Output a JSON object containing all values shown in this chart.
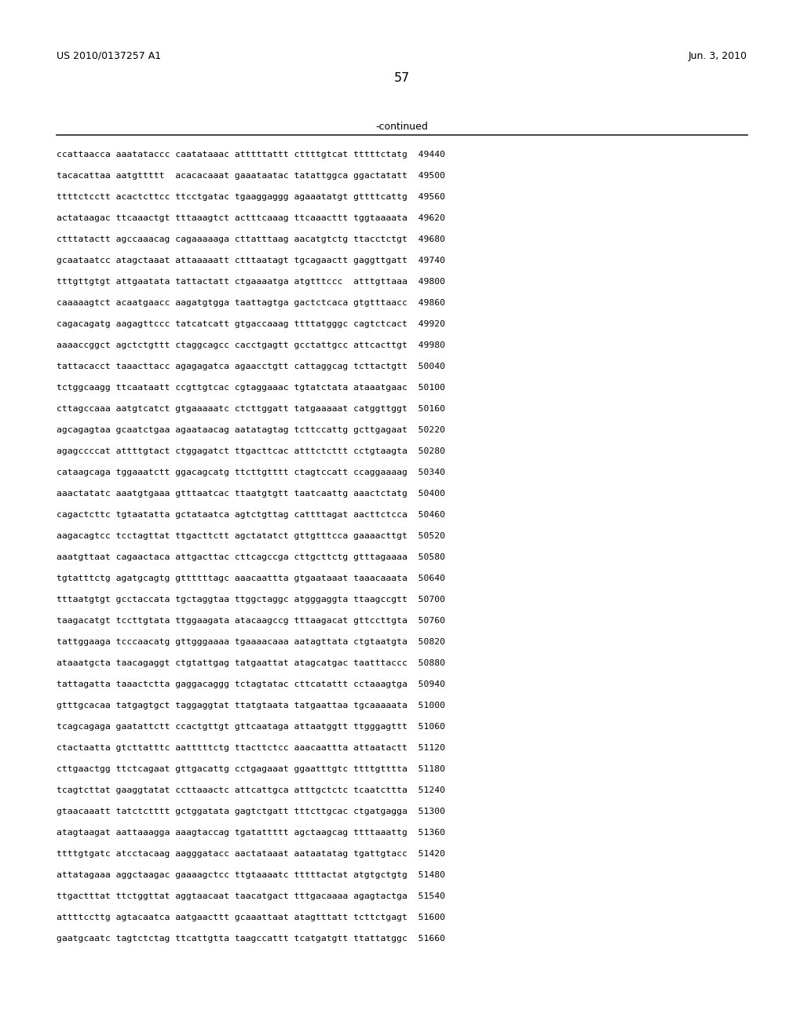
{
  "header_left": "US 2010/0137257 A1",
  "header_right": "Jun. 3, 2010",
  "page_number": "57",
  "continued_label": "-continued",
  "background_color": "#ffffff",
  "text_color": "#000000",
  "font_size_header": 9.0,
  "font_size_page": 11.5,
  "font_size_body": 8.2,
  "font_size_continued": 9.0,
  "sequence_lines": [
    "ccattaacca aaatataccc caatataaac atttttattt cttttgtcat tttttctatg  49440",
    "tacacattaa aatgttttt  acacacaaat gaaataatac tatattggca ggactatatt  49500",
    "ttttctcctt acactcttcc ttcctgatac tgaaggaggg agaaatatgt gttttcattg  49560",
    "actataagac ttcaaactgt tttaaagtct actttcaaag ttcaaacttt tggtaaaata  49620",
    "ctttatactt agccaaacag cagaaaaaga cttatttaag aacatgtctg ttacctctgt  49680",
    "gcaataatcc atagctaaat attaaaaatt ctttaatagt tgcagaactt gaggttgatt  49740",
    "tttgttgtgt attgaatata tattactatt ctgaaaatga atgtttccc  atttgttaaa  49800",
    "caaaaagtct acaatgaacc aagatgtgga taattagtga gactctcaca gtgtttaacc  49860",
    "cagacagatg aagagttccc tatcatcatt gtgaccaaag ttttatgggc cagtctcact  49920",
    "aaaaccggct agctctgttt ctaggcagcc cacctgagtt gcctattgcc attcacttgt  49980",
    "tattacacct taaacttacc agagagatca agaacctgtt cattaggcag tcttactgtt  50040",
    "tctggcaagg ttcaataatt ccgttgtcac cgtaggaaac tgtatctata ataaatgaac  50100",
    "cttagccaaa aatgtcatct gtgaaaaatc ctcttggatt tatgaaaaat catggttggt  50160",
    "agcagagtaa gcaatctgaa agaataacag aatatagtag tcttccattg gcttgagaat  50220",
    "agagccccat attttgtact ctggagatct ttgacttcac atttctcttt cctgtaagta  50280",
    "cataagcaga tggaaatctt ggacagcatg ttcttgtttt ctagtccatt ccaggaaaag  50340",
    "aaactatatc aaatgtgaaa gtttaatcac ttaatgtgtt taatcaattg aaactctatg  50400",
    "cagactcttc tgtaatatta gctataatca agtctgttag cattttagat aacttctcca  50460",
    "aagacagtcc tcctagttat ttgacttctt agctatatct gttgtttcca gaaaacttgt  50520",
    "aaatgttaat cagaactaca attgacttac cttcagccga cttgcttctg gtttagaaaa  50580",
    "tgtatttctg agatgcagtg gttttttagc aaacaattta gtgaataaat taaacaaata  50640",
    "tttaatgtgt gcctaccata tgctaggtaa ttggctaggc atgggaggta ttaagccgtt  50700",
    "taagacatgt tccttgtata ttggaagata atacaagccg tttaagacat gttccttgta  50760",
    "tattggaaga tcccaacatg gttgggaaaa tgaaaacaaa aatagttata ctgtaatgta  50820",
    "ataaatgcta taacagaggt ctgtattgag tatgaattat atagcatgac taatttaccc  50880",
    "tattagatta taaactctta gaggacaggg tctagtatac cttcatattt cctaaagtga  50940",
    "gtttgcacaa tatgagtgct taggaggtat ttatgtaata tatgaattaa tgcaaaaata  51000",
    "tcagcagaga gaatattctt ccactgttgt gttcaataga attaatggtt ttgggagttt  51060",
    "ctactaatta gtcttatttc aatttttctg ttacttctcc aaacaattta attaatactt  51120",
    "cttgaactgg ttctcagaat gttgacattg cctgagaaat ggaatttgtc ttttgtttta  51180",
    "tcagtcttat gaaggtatat ccttaaactc attcattgca atttgctctc tcaatcttta  51240",
    "gtaacaaatt tatctctttt gctggatata gagtctgatt tttcttgcac ctgatgagga  51300",
    "atagtaagat aattaaagga aaagtaccag tgatattttt agctaagcag ttttaaattg  51360",
    "ttttgtgatc atcctacaag aagggatacc aactataaat aataatatag tgattgtacc  51420",
    "attatagaaa aggctaagac gaaaagctcc ttgtaaaatc tttttactat atgtgctgtg  51480",
    "ttgactttat ttctggttat aggtaacaat taacatgact tttgacaaaa agagtactga  51540",
    "attttccttg agtacaatca aatgaacttt gcaaattaat atagtttatt tcttctgagt  51600",
    "gaatgcaatc tagtctctag ttcattgtta taagccattt tcatgatgtt ttattatggc  51660"
  ]
}
